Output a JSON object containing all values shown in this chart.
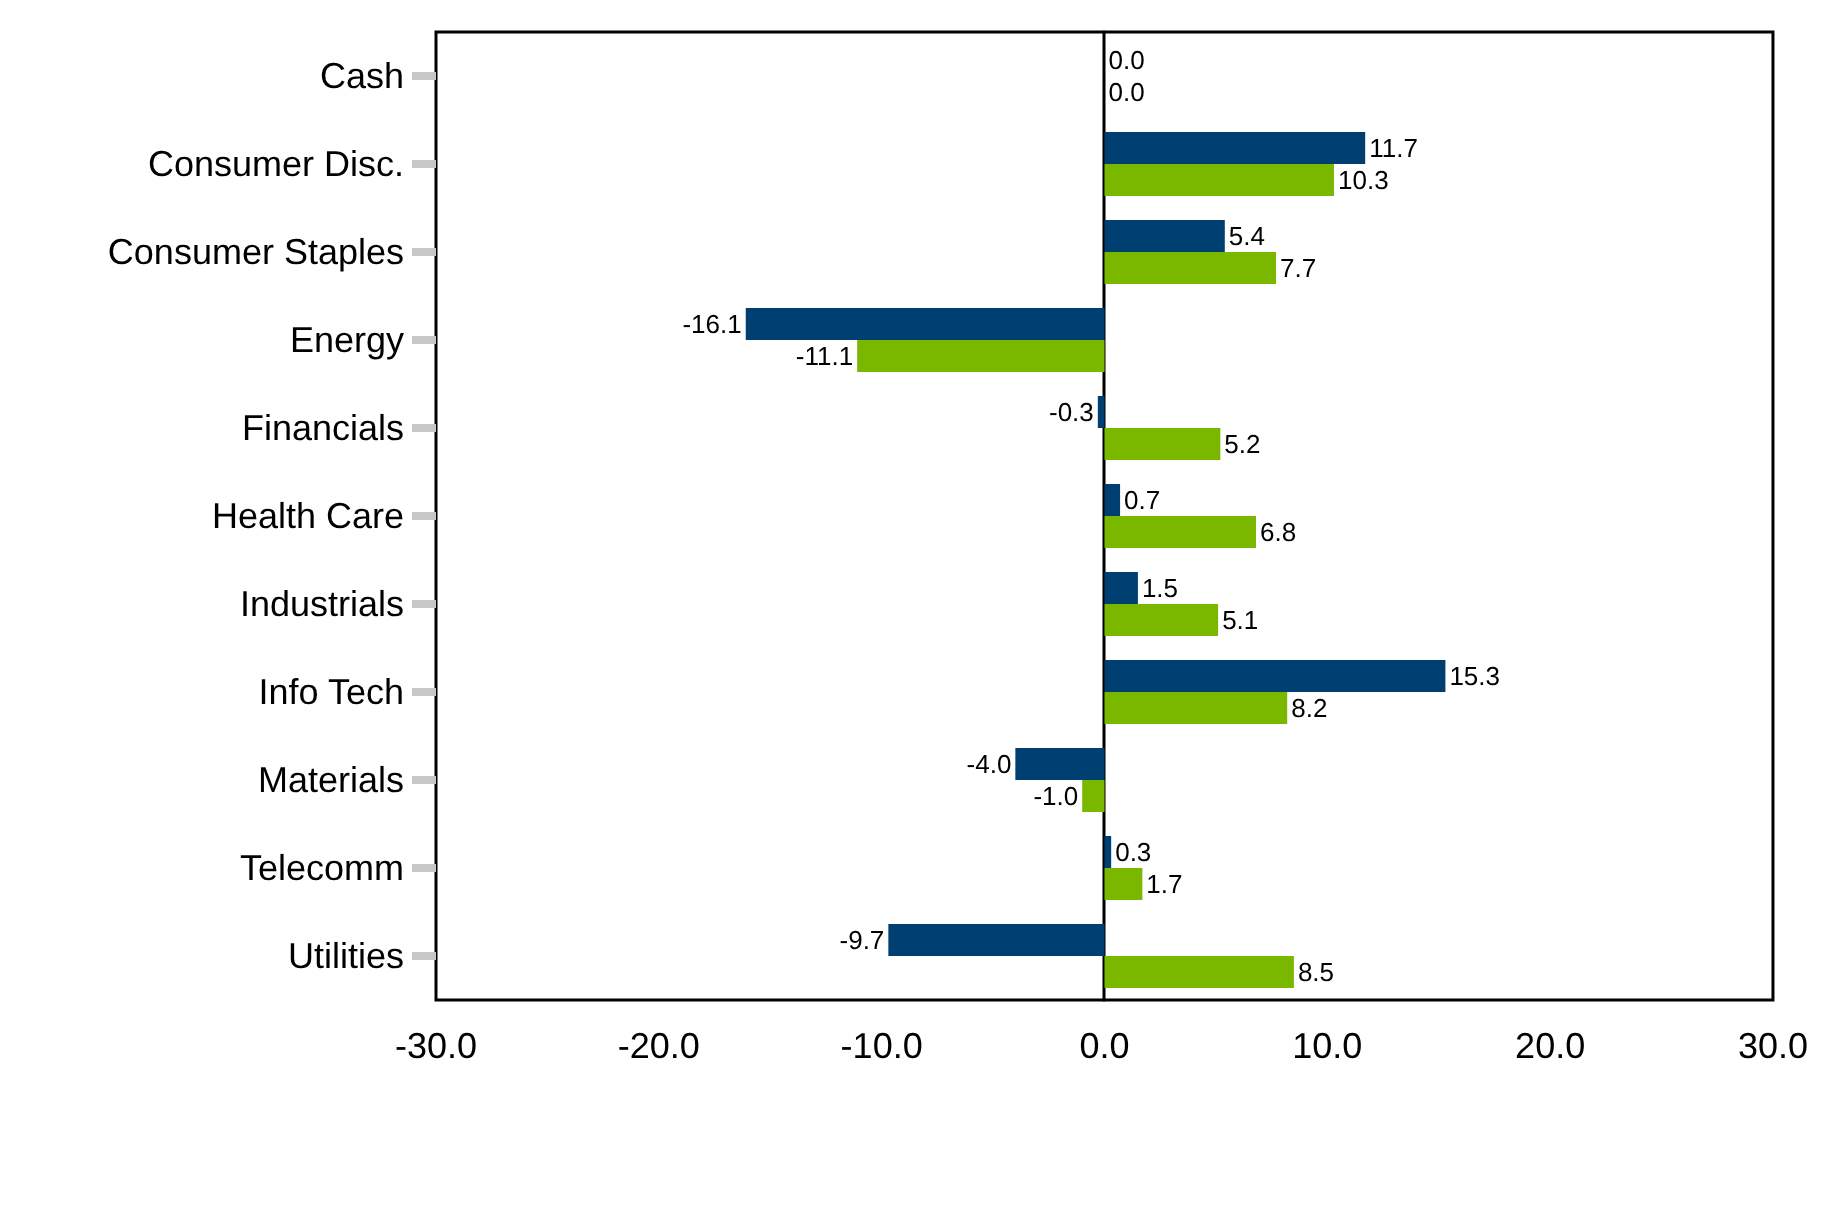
{
  "chart_data": {
    "type": "bar",
    "orientation": "horizontal",
    "categories": [
      "Cash",
      "Consumer Disc.",
      "Consumer Staples",
      "Energy",
      "Financials",
      "Health Care",
      "Industrials",
      "Info Tech",
      "Materials",
      "Telecomm",
      "Utilities"
    ],
    "series": [
      {
        "color": "#003f72",
        "values": [
          0.0,
          11.7,
          5.4,
          -16.1,
          -0.3,
          0.7,
          1.5,
          15.3,
          -4.0,
          0.3,
          -9.7
        ],
        "value_labels": [
          "0.0",
          "11.7",
          "5.4",
          "-16.1",
          "-0.3",
          "0.7",
          "1.5",
          "15.3",
          "-4.0",
          "0.3",
          "-9.7"
        ]
      },
      {
        "color": "#7ab800",
        "values": [
          0.0,
          10.3,
          7.7,
          -11.1,
          5.2,
          6.8,
          5.1,
          8.2,
          -1.0,
          1.7,
          8.5
        ],
        "value_labels": [
          "0.0",
          "10.3",
          "7.7",
          "-11.1",
          "5.2",
          "6.8",
          "5.1",
          "8.2",
          "-1.0",
          "1.7",
          "8.5"
        ]
      }
    ],
    "xlim": [
      -30,
      30
    ],
    "xticks": [
      {
        "value": -30,
        "label": "-30.0"
      },
      {
        "value": -20,
        "label": "-20.0"
      },
      {
        "value": -10,
        "label": "-10.0"
      },
      {
        "value": 0,
        "label": "0.0"
      },
      {
        "value": 10,
        "label": "10.0"
      },
      {
        "value": 20,
        "label": "20.0"
      },
      {
        "value": 30,
        "label": "30.0"
      }
    ],
    "data_labels": false
  }
}
